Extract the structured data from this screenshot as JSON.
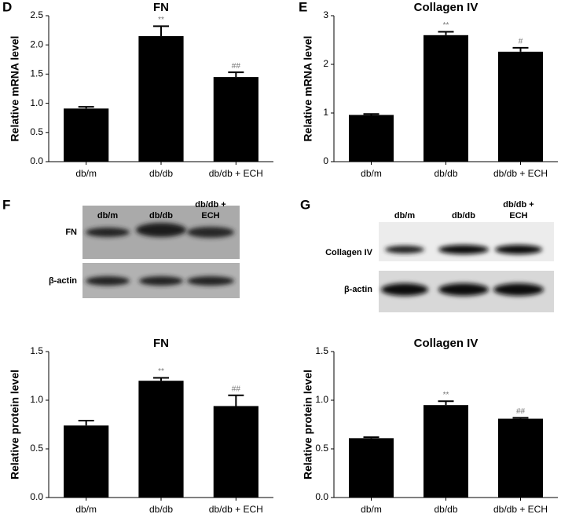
{
  "chart_data": [
    {
      "type": "bar",
      "panel": "D",
      "title": "FN",
      "ylabel": "Relative mRNA level",
      "categories": [
        "db/m",
        "db/db",
        "db/db + ECH"
      ],
      "values": [
        0.91,
        2.15,
        1.45
      ],
      "errors": [
        0.03,
        0.17,
        0.08
      ],
      "annotations": [
        null,
        "**",
        "##"
      ],
      "color": "#000000",
      "ylim": [
        0,
        2.5
      ],
      "yticks": [
        {
          "value": 0,
          "label": "0.0"
        },
        0.5,
        {
          "value": 1,
          "label": "1.0"
        },
        1.5,
        {
          "value": 2,
          "label": "2.0"
        },
        2.5
      ]
    },
    {
      "type": "bar",
      "panel": "E",
      "title": "Collagen IV",
      "ylabel": "Relative mRNA level",
      "categories": [
        "db/m",
        "db/db",
        "db/db + ECH"
      ],
      "values": [
        0.96,
        2.6,
        2.26
      ],
      "errors": [
        0.02,
        0.07,
        0.08
      ],
      "annotations": [
        null,
        "**",
        "#"
      ],
      "color": "#000000",
      "ylim": [
        0,
        3
      ],
      "yticks": [
        0,
        1,
        2,
        3
      ]
    },
    {
      "type": "bar",
      "panel": "F",
      "title": "FN",
      "ylabel": "Relative protein level",
      "categories": [
        "db/m",
        "db/db",
        "db/db + ECH"
      ],
      "values": [
        0.74,
        1.2,
        0.94
      ],
      "errors": [
        0.05,
        0.03,
        0.11
      ],
      "annotations": [
        null,
        "**",
        "##"
      ],
      "color": "#000000",
      "ylim": [
        0,
        1.5
      ],
      "yticks": [
        {
          "value": 0,
          "label": "0.0"
        },
        0.5,
        {
          "value": 1,
          "label": "1.0"
        },
        1.5
      ]
    },
    {
      "type": "bar",
      "panel": "G",
      "title": "Collagen IV",
      "ylabel": "Relative protein level",
      "categories": [
        "db/m",
        "db/db",
        "db/db + ECH"
      ],
      "values": [
        0.61,
        0.95,
        0.81
      ],
      "errors": [
        0.01,
        0.04,
        0.01
      ],
      "annotations": [
        null,
        "**",
        "##"
      ],
      "color": "#000000",
      "ylim": [
        0,
        1.5
      ],
      "yticks": [
        {
          "value": 0,
          "label": "0.0"
        },
        0.5,
        {
          "value": 1,
          "label": "1.0"
        },
        1.5
      ]
    }
  ],
  "blots": [
    {
      "lanes": [
        "db/m",
        "db/db",
        "db/db + ECH"
      ],
      "rows": [
        "FN",
        "β-actin"
      ]
    },
    {
      "lanes": [
        "db/m",
        "db/db",
        "db/db + ECH"
      ],
      "rows": [
        "Collagen IV",
        "β-actin"
      ]
    }
  ]
}
